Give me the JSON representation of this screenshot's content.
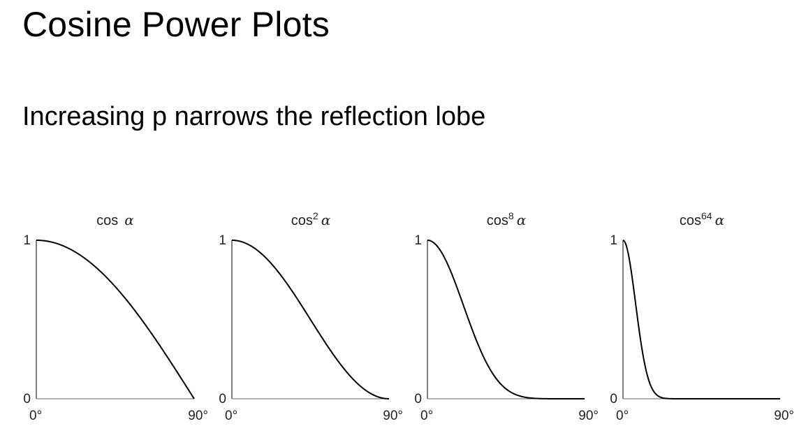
{
  "slide": {
    "title": "Cosine Power Plots",
    "subtitle": "Increasing p narrows the reflection lobe"
  },
  "chart_data": [
    {
      "type": "line",
      "title": "cos α",
      "title_base": "cos",
      "title_exponent": "",
      "title_var": "α",
      "exponent": 1,
      "xlim": [
        0,
        90
      ],
      "ylim": [
        0,
        1
      ],
      "x_tick_labels": [
        "0°",
        "90°"
      ],
      "y_tick_labels": [
        "0",
        "1"
      ],
      "x": [
        0,
        15,
        30,
        45,
        60,
        75,
        90
      ],
      "y": [
        1.0,
        0.966,
        0.866,
        0.707,
        0.5,
        0.259,
        0.0
      ]
    },
    {
      "type": "line",
      "title": "cos2 α",
      "title_base": "cos",
      "title_exponent": "2",
      "title_var": "α",
      "exponent": 2,
      "xlim": [
        0,
        90
      ],
      "ylim": [
        0,
        1
      ],
      "x_tick_labels": [
        "0°",
        "90°"
      ],
      "y_tick_labels": [
        "0",
        "1"
      ],
      "x": [
        0,
        15,
        30,
        45,
        60,
        75,
        90
      ],
      "y": [
        1.0,
        0.933,
        0.75,
        0.5,
        0.25,
        0.067,
        0.0
      ]
    },
    {
      "type": "line",
      "title": "cos8 α",
      "title_base": "cos",
      "title_exponent": "8",
      "title_var": "α",
      "exponent": 8,
      "xlim": [
        0,
        90
      ],
      "ylim": [
        0,
        1
      ],
      "x_tick_labels": [
        "0°",
        "90°"
      ],
      "y_tick_labels": [
        "0",
        "1"
      ],
      "x": [
        0,
        15,
        30,
        45,
        60,
        75,
        90
      ],
      "y": [
        1.0,
        0.758,
        0.316,
        0.063,
        0.004,
        0.0,
        0.0
      ]
    },
    {
      "type": "line",
      "title": "cos64 α",
      "title_base": "cos",
      "title_exponent": "64",
      "title_var": "α",
      "exponent": 64,
      "xlim": [
        0,
        90
      ],
      "ylim": [
        0,
        1
      ],
      "x_tick_labels": [
        "0°",
        "90°"
      ],
      "y_tick_labels": [
        "0",
        "1"
      ],
      "x": [
        0,
        5,
        10,
        15,
        20,
        30,
        45,
        90
      ],
      "y": [
        1.0,
        0.784,
        0.375,
        0.109,
        0.019,
        0.0,
        0.0,
        0.0
      ]
    }
  ]
}
